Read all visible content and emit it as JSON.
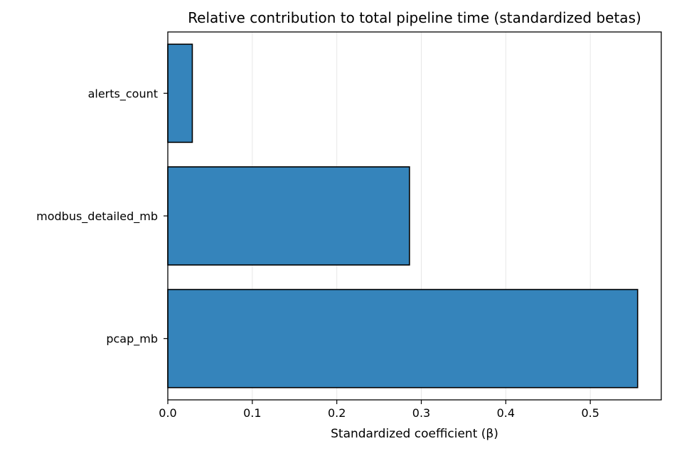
{
  "chart_data": {
    "type": "bar",
    "orientation": "horizontal",
    "title": "Relative contribution to total pipeline time (standardized betas)",
    "xlabel": "Standardized coefficient (β)",
    "ylabel": "",
    "categories": [
      "alerts_count",
      "modbus_detailed_mb",
      "pcap_mb"
    ],
    "values": [
      0.029,
      0.286,
      0.556
    ],
    "xlim": [
      0.0,
      0.584
    ],
    "xticks": [
      0.0,
      0.1,
      0.2,
      0.3,
      0.4,
      0.5
    ],
    "xtick_labels": [
      "0.0",
      "0.1",
      "0.2",
      "0.3",
      "0.4",
      "0.5"
    ],
    "grid": "x-axis",
    "legend": "none",
    "bar_color": "#3584bb",
    "edge_color": "#000000"
  }
}
